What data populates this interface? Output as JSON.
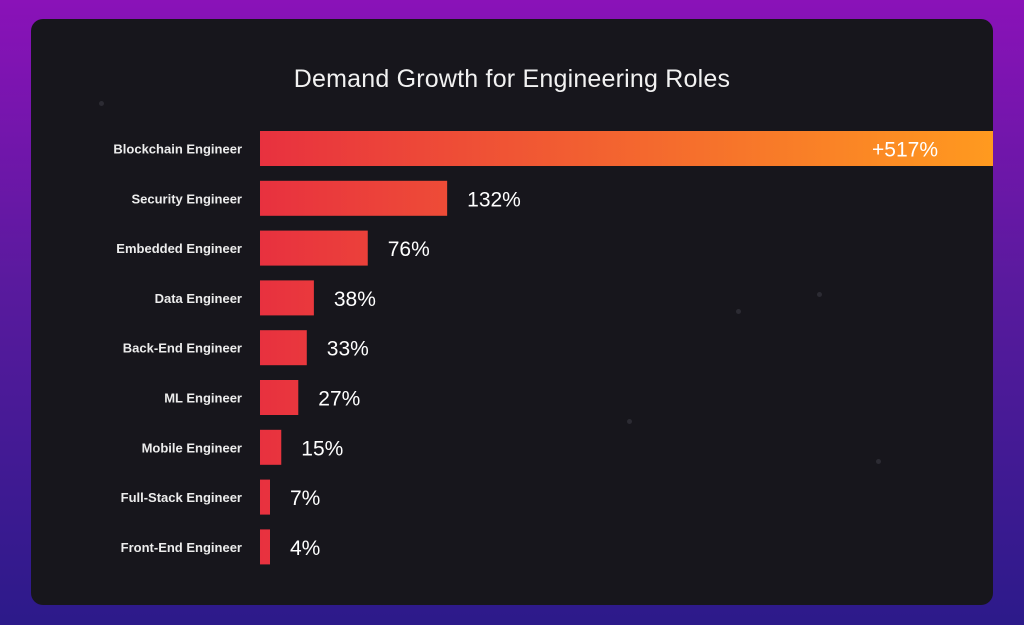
{
  "colors": {
    "bar_start": "#e8313f",
    "bar_end": "#ff9a1f",
    "card_bg": "#17161c"
  },
  "chart_data": {
    "type": "bar",
    "orientation": "horizontal",
    "title": "Demand Growth for Engineering Roles",
    "categories": [
      "Blockchain Engineer",
      "Security Engineer",
      "Embedded Engineer",
      "Data Engineer",
      "Back-End Engineer",
      "ML Engineer",
      "Mobile Engineer",
      "Full-Stack Engineer",
      "Front-End Engineer"
    ],
    "values": [
      517,
      132,
      76,
      38,
      33,
      27,
      15,
      7,
      4
    ],
    "value_labels": [
      "+517%",
      "132%",
      "76%",
      "38%",
      "33%",
      "27%",
      "15%",
      "7%",
      "4%"
    ],
    "xlabel": "",
    "ylabel": "",
    "grid": false,
    "legend": "none"
  }
}
